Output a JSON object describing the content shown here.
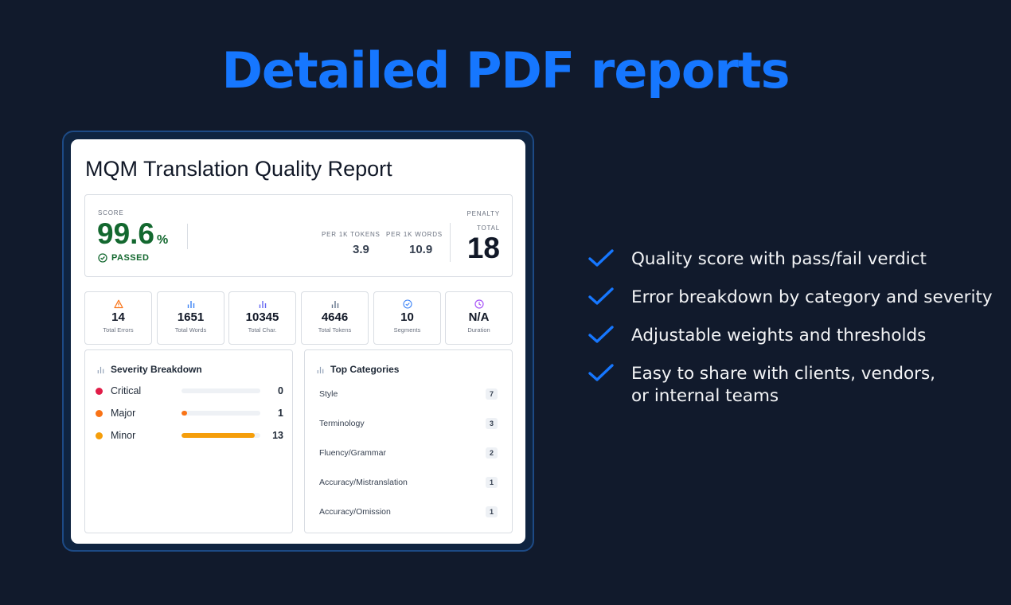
{
  "headline": "Detailed PDF reports",
  "report": {
    "title": "MQM Translation Quality Report",
    "score": {
      "label": "SCORE",
      "value": "99.6",
      "unit": "%",
      "verdict": "PASSED"
    },
    "penalty": {
      "label": "PENALTY",
      "per_1k_tokens_label": "PER 1K TOKENS",
      "per_1k_tokens_value": "3.9",
      "per_1k_words_label": "PER 1K WORDS",
      "per_1k_words_value": "10.9",
      "total_label": "TOTAL",
      "total_value": "18"
    },
    "stats": [
      {
        "value": "14",
        "label": "Total Errors",
        "icon": "warning-icon",
        "color": "#f97316"
      },
      {
        "value": "1651",
        "label": "Total Words",
        "icon": "bar-chart-icon",
        "color": "#3b82f6"
      },
      {
        "value": "10345",
        "label": "Total Char.",
        "icon": "bar-chart-icon",
        "color": "#6366f1"
      },
      {
        "value": "4646",
        "label": "Total Tokens",
        "icon": "bar-chart-icon",
        "color": "#64748b"
      },
      {
        "value": "10",
        "label": "Segments",
        "icon": "check-circle-icon",
        "color": "#3b82f6"
      },
      {
        "value": "N/A",
        "label": "Duration",
        "icon": "clock-icon",
        "color": "#a855f7"
      }
    ],
    "severity": {
      "title": "Severity Breakdown",
      "items": [
        {
          "name": "Critical",
          "count": "0",
          "fraction": 0,
          "color": "#e11d48"
        },
        {
          "name": "Major",
          "count": "1",
          "fraction": 0.07,
          "color": "#f97316"
        },
        {
          "name": "Minor",
          "count": "13",
          "fraction": 0.93,
          "color": "#f59e0b"
        }
      ]
    },
    "categories": {
      "title": "Top Categories",
      "items": [
        {
          "name": "Style",
          "count": "7"
        },
        {
          "name": "Terminology",
          "count": "3"
        },
        {
          "name": "Fluency/Grammar",
          "count": "2"
        },
        {
          "name": "Accuracy/Mistranslation",
          "count": "1"
        },
        {
          "name": "Accuracy/Omission",
          "count": "1"
        }
      ]
    }
  },
  "features": [
    "Quality score with pass/fail verdict",
    "Error breakdown by category and severity",
    "Adjustable weights and thresholds",
    "Easy to share with clients, vendors,\nor internal teams"
  ],
  "colors": {
    "accent": "#1677ff",
    "pass": "#13682f",
    "background": "#111a2c"
  }
}
